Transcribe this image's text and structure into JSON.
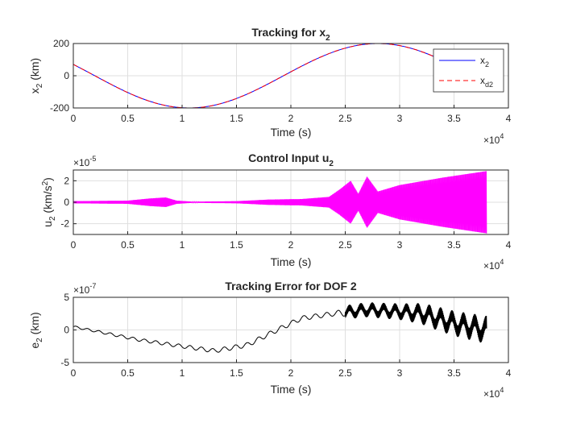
{
  "chart_data": [
    {
      "type": "line",
      "title": "Tracking for x",
      "title_sub": "2",
      "xlabel": "Time (s)",
      "ylabel": "x",
      "ylabel_sub": "2",
      "ylabel_unit": " (km)",
      "x_multiplier": "×10",
      "x_multiplier_exp": "4",
      "xlim": [
        0,
        4
      ],
      "ylim": [
        -200,
        200
      ],
      "xticks": [
        "0",
        "0.5",
        "1",
        "1.5",
        "2",
        "2.5",
        "3",
        "3.5",
        "4"
      ],
      "yticks": [
        "-200",
        "0",
        "200"
      ],
      "legend_position": "top-right",
      "legend": [
        {
          "name": "x",
          "sub": "2",
          "color": "#0000ff",
          "style": "solid"
        },
        {
          "name": "x",
          "sub": "d2",
          "color": "#ff0000",
          "style": "dashed"
        }
      ],
      "series": [
        {
          "name": "x2",
          "color": "#0000ff",
          "x_end": 3.8,
          "model": "sinusoid",
          "amplitude": 200,
          "period": 3.47,
          "peak_at": 2.8
        },
        {
          "name": "xd2",
          "color": "#ff0000",
          "x_end": 3.8,
          "model": "sinusoid",
          "amplitude": 200,
          "period": 3.47,
          "peak_at": 2.8
        }
      ]
    },
    {
      "type": "line",
      "title": "Control Input u",
      "title_sub": "2",
      "xlabel": "Time (s)",
      "ylabel": "u",
      "ylabel_sub": "2",
      "ylabel_unit": " (km/s",
      "ylabel_sup": "2",
      "y_multiplier": "×10",
      "y_multiplier_exp": "-5",
      "x_multiplier": "×10",
      "x_multiplier_exp": "4",
      "xlim": [
        0,
        4
      ],
      "ylim": [
        -3,
        3
      ],
      "xticks": [
        "0",
        "0.5",
        "1",
        "1.5",
        "2",
        "2.5",
        "3",
        "3.5",
        "4"
      ],
      "yticks": [
        "-2",
        "0",
        "2"
      ],
      "series": [
        {
          "name": "u2",
          "color": "#ff00ff",
          "x_end": 3.8,
          "model": "oscillation-envelope",
          "envelope": [
            [
              0,
              0.1
            ],
            [
              0.5,
              0.15
            ],
            [
              0.7,
              0.35
            ],
            [
              0.85,
              0.45
            ],
            [
              0.95,
              0.15
            ],
            [
              1.1,
              0.05
            ],
            [
              1.5,
              0.1
            ],
            [
              1.8,
              0.25
            ],
            [
              2.1,
              0.3
            ],
            [
              2.35,
              0.5
            ],
            [
              2.45,
              1.2
            ],
            [
              2.55,
              2.0
            ],
            [
              2.62,
              0.8
            ],
            [
              2.7,
              2.4
            ],
            [
              2.8,
              1.0
            ],
            [
              3.0,
              1.6
            ],
            [
              3.4,
              2.3
            ],
            [
              3.8,
              2.9
            ]
          ]
        }
      ]
    },
    {
      "type": "line",
      "title": "Tracking Error for DOF 2",
      "xlabel": "Time (s)",
      "ylabel": "e",
      "ylabel_sub": "2",
      "ylabel_unit": " (km)",
      "y_multiplier": "×10",
      "y_multiplier_exp": "-7",
      "x_multiplier": "×10",
      "x_multiplier_exp": "4",
      "xlim": [
        0,
        4
      ],
      "ylim": [
        -5,
        5
      ],
      "xticks": [
        "0",
        "0.5",
        "1",
        "1.5",
        "2",
        "2.5",
        "3",
        "3.5",
        "4"
      ],
      "yticks": [
        "-5",
        "0",
        "5"
      ],
      "series": [
        {
          "name": "e2",
          "color": "#000000",
          "x_end": 3.8,
          "model": "trend-with-ripple",
          "trend": [
            [
              0,
              0.5
            ],
            [
              0.3,
              -0.5
            ],
            [
              0.6,
              -1.5
            ],
            [
              1.0,
              -2.5
            ],
            [
              1.3,
              -3.2
            ],
            [
              1.6,
              -2.3
            ],
            [
              1.85,
              -0.2
            ],
            [
              2.1,
              1.8
            ],
            [
              2.4,
              2.5
            ],
            [
              2.7,
              3.1
            ],
            [
              3.0,
              2.8
            ],
            [
              3.2,
              2.5
            ],
            [
              3.5,
              1.0
            ],
            [
              3.8,
              0.0
            ]
          ],
          "ripple": [
            [
              0,
              0.15
            ],
            [
              1.2,
              0.3
            ],
            [
              1.6,
              0.35
            ],
            [
              2.4,
              0.35
            ],
            [
              2.5,
              0.6
            ],
            [
              3.0,
              0.7
            ],
            [
              3.3,
              1.0
            ],
            [
              3.8,
              1.2
            ]
          ]
        }
      ]
    }
  ]
}
